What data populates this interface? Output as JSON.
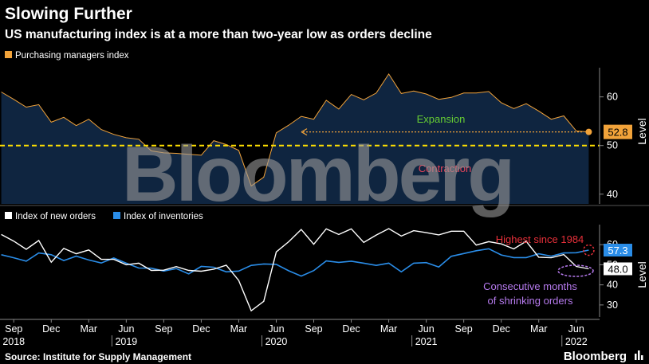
{
  "title": "Slowing Further",
  "subtitle": "US manufacturing index is at a more than two-year low as orders decline",
  "source": "Source: Institute for Supply Management",
  "brand": "Bloomberg",
  "watermark": "Bloomberg",
  "colors": {
    "pmi": "#f2a33a",
    "pmi_fill": "#0f2540",
    "new_orders": "#ffffff",
    "inventories": "#2a8de8",
    "threshold": "#ffe000",
    "expansion": "#66cc33",
    "contraction": "#e8455a",
    "highest": "#e8303a",
    "consecutive": "#b77bef"
  },
  "chart_data": [
    {
      "type": "area",
      "legend": [
        "Purchasing managers index"
      ],
      "series": [
        {
          "name": "Purchasing managers index",
          "x": [
            "2018-08",
            "2018-09",
            "2018-10",
            "2018-11",
            "2018-12",
            "2019-01",
            "2019-02",
            "2019-03",
            "2019-04",
            "2019-05",
            "2019-06",
            "2019-07",
            "2019-08",
            "2019-09",
            "2019-10",
            "2019-11",
            "2019-12",
            "2020-01",
            "2020-02",
            "2020-03",
            "2020-04",
            "2020-05",
            "2020-06",
            "2020-07",
            "2020-08",
            "2020-09",
            "2020-10",
            "2020-11",
            "2020-12",
            "2021-01",
            "2021-02",
            "2021-03",
            "2021-04",
            "2021-05",
            "2021-06",
            "2021-07",
            "2021-08",
            "2021-09",
            "2021-10",
            "2021-11",
            "2021-12",
            "2022-01",
            "2022-02",
            "2022-03",
            "2022-04",
            "2022-05",
            "2022-06",
            "2022-07"
          ],
          "values": [
            61.0,
            59.5,
            57.9,
            58.4,
            54.8,
            55.8,
            54.1,
            55.4,
            53.3,
            52.3,
            51.6,
            51.3,
            48.9,
            48.5,
            48.4,
            48.2,
            48.0,
            51.0,
            50.2,
            49.0,
            41.7,
            43.5,
            52.6,
            54.2,
            56.0,
            55.4,
            59.3,
            57.5,
            60.5,
            59.4,
            60.8,
            64.7,
            60.7,
            61.2,
            60.6,
            59.5,
            59.9,
            60.8,
            60.8,
            61.1,
            58.8,
            57.6,
            58.6,
            57.1,
            55.4,
            56.1,
            53.0,
            52.8
          ]
        }
      ],
      "last_value_label": "52.8",
      "threshold": 50,
      "annotations": [
        "Expansion",
        "Contraction"
      ],
      "ylabel": "Level",
      "yticks": [
        40,
        50,
        60
      ],
      "ylim": [
        38,
        66
      ],
      "grid": false
    },
    {
      "type": "line",
      "legend": [
        "Index of new orders",
        "Index of inventories"
      ],
      "series": [
        {
          "name": "Index of new orders",
          "x": [
            "2018-08",
            "2018-09",
            "2018-10",
            "2018-11",
            "2018-12",
            "2019-01",
            "2019-02",
            "2019-03",
            "2019-04",
            "2019-05",
            "2019-06",
            "2019-07",
            "2019-08",
            "2019-09",
            "2019-10",
            "2019-11",
            "2019-12",
            "2020-01",
            "2020-02",
            "2020-03",
            "2020-04",
            "2020-05",
            "2020-06",
            "2020-07",
            "2020-08",
            "2020-09",
            "2020-10",
            "2020-11",
            "2020-12",
            "2021-01",
            "2021-02",
            "2021-03",
            "2021-04",
            "2021-05",
            "2021-06",
            "2021-07",
            "2021-08",
            "2021-09",
            "2021-10",
            "2021-11",
            "2021-12",
            "2022-01",
            "2022-02",
            "2022-03",
            "2022-04",
            "2022-05",
            "2022-06",
            "2022-07"
          ],
          "values": [
            65.1,
            61.8,
            57.7,
            62.1,
            51.3,
            58.2,
            55.5,
            57.4,
            52.7,
            52.7,
            50.0,
            50.8,
            47.2,
            47.3,
            49.1,
            47.2,
            46.8,
            47.8,
            49.8,
            42.2,
            27.1,
            31.8,
            56.4,
            61.5,
            67.6,
            60.2,
            67.9,
            65.1,
            67.9,
            61.1,
            64.8,
            68.0,
            64.3,
            67.0,
            66.0,
            64.9,
            66.7,
            66.7,
            59.8,
            61.5,
            60.4,
            57.9,
            61.7,
            53.8,
            53.5,
            55.1,
            49.2,
            48.0
          ]
        },
        {
          "name": "Index of inventories",
          "x": [
            "2018-08",
            "2018-09",
            "2018-10",
            "2018-11",
            "2018-12",
            "2019-01",
            "2019-02",
            "2019-03",
            "2019-04",
            "2019-05",
            "2019-06",
            "2019-07",
            "2019-08",
            "2019-09",
            "2019-10",
            "2019-11",
            "2019-12",
            "2020-01",
            "2020-02",
            "2020-03",
            "2020-04",
            "2020-05",
            "2020-06",
            "2020-07",
            "2020-08",
            "2020-09",
            "2020-10",
            "2020-11",
            "2020-12",
            "2021-01",
            "2021-02",
            "2021-03",
            "2021-04",
            "2021-05",
            "2021-06",
            "2021-07",
            "2021-08",
            "2021-09",
            "2021-10",
            "2021-11",
            "2021-12",
            "2022-01",
            "2022-02",
            "2022-03",
            "2022-04",
            "2022-05",
            "2022-06",
            "2022-07"
          ],
          "values": [
            55.0,
            53.5,
            51.8,
            55.9,
            55.0,
            52.1,
            54.3,
            52.4,
            50.9,
            53.4,
            50.8,
            48.4,
            48.3,
            46.9,
            48.1,
            45.5,
            49.2,
            48.8,
            46.5,
            46.9,
            49.7,
            50.4,
            50.2,
            47.0,
            44.4,
            47.1,
            51.9,
            51.2,
            51.8,
            50.8,
            49.7,
            50.8,
            46.5,
            50.8,
            51.1,
            48.9,
            54.2,
            55.6,
            57.0,
            58.0,
            54.9,
            53.6,
            53.6,
            55.5,
            54.3,
            55.9,
            56.0,
            57.3
          ]
        }
      ],
      "last_value_labels": [
        "57.3",
        "48.0"
      ],
      "annotations": [
        "Highest since 1984",
        "Consecutive months",
        "of shrinking orders"
      ],
      "ylabel": "Level",
      "yticks": [
        30,
        40,
        50,
        60
      ],
      "ytick_labels": [
        "30",
        "40",
        "50",
        "60"
      ],
      "ylim": [
        24,
        70
      ],
      "grid": false
    }
  ],
  "x_axis": {
    "ticks": [
      {
        "date": "2018-09",
        "label": "Sep",
        "year": "2018"
      },
      {
        "date": "2018-12",
        "label": "Dec"
      },
      {
        "date": "2019-03",
        "label": "Mar"
      },
      {
        "date": "2019-06",
        "label": "Jun",
        "year": "2019"
      },
      {
        "date": "2019-09",
        "label": "Sep"
      },
      {
        "date": "2019-12",
        "label": "Dec"
      },
      {
        "date": "2020-03",
        "label": "Mar"
      },
      {
        "date": "2020-06",
        "label": "Jun",
        "year": "2020"
      },
      {
        "date": "2020-09",
        "label": "Sep"
      },
      {
        "date": "2020-12",
        "label": "Dec"
      },
      {
        "date": "2021-03",
        "label": "Mar"
      },
      {
        "date": "2021-06",
        "label": "Jun",
        "year": "2021"
      },
      {
        "date": "2021-09",
        "label": "Sep"
      },
      {
        "date": "2021-12",
        "label": "Dec"
      },
      {
        "date": "2022-03",
        "label": "Mar"
      },
      {
        "date": "2022-06",
        "label": "Jun",
        "year": "2022"
      }
    ]
  }
}
